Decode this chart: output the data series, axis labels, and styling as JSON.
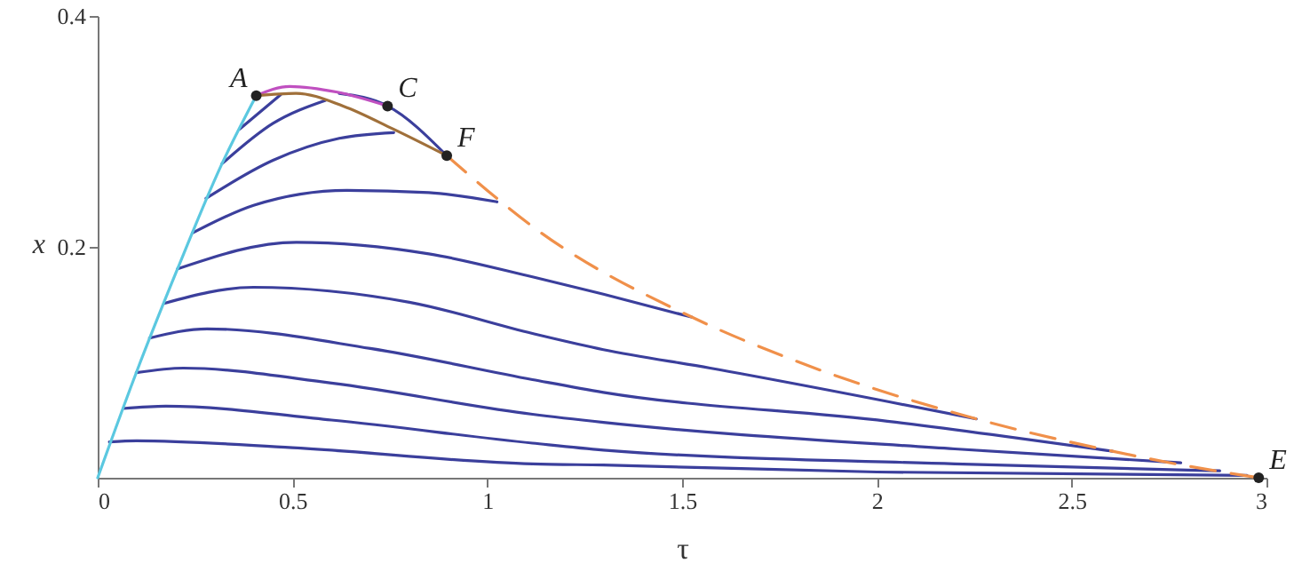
{
  "chart_data": {
    "type": "line",
    "xlabel": "τ",
    "ylabel": "x",
    "xlim": [
      0,
      3
    ],
    "ylim": [
      0,
      0.4
    ],
    "xticks": [
      0,
      0.5,
      1,
      1.5,
      2,
      2.5,
      3
    ],
    "yticks": [
      0.2,
      0.4
    ],
    "grid": false,
    "line_style": "solid",
    "series": [
      {
        "color": "#3b3f9c",
        "x": [
          0.03,
          0.1,
          0.5,
          1.116,
          1.298,
          2.0,
          2.95
        ],
        "values": [
          0.031,
          0.032,
          0.026,
          0.012,
          0.011,
          0.005,
          0.002
        ]
      },
      {
        "color": "#3b3f9c",
        "x": [
          0.065,
          0.175,
          0.6,
          1.116,
          1.298,
          2.2,
          2.88
        ],
        "values": [
          0.06,
          0.062,
          0.05,
          0.03,
          0.024,
          0.012,
          0.006
        ]
      },
      {
        "color": "#3b3f9c",
        "x": [
          0.099,
          0.22,
          0.6,
          1.116,
          1.298,
          2.2,
          2.78
        ],
        "values": [
          0.091,
          0.095,
          0.082,
          0.055,
          0.048,
          0.025,
          0.013
        ]
      },
      {
        "color": "#3b3f9c",
        "x": [
          0.133,
          0.281,
          0.7,
          1.116,
          1.298,
          2.027,
          2.605
        ],
        "values": [
          0.121,
          0.129,
          0.112,
          0.085,
          0.074,
          0.049,
          0.023
        ]
      },
      {
        "color": "#3b3f9c",
        "x": [
          0.17,
          0.4,
          0.8,
          1.116,
          1.298,
          1.572,
          2.255
        ],
        "values": [
          0.151,
          0.165,
          0.152,
          0.125,
          0.111,
          0.095,
          0.051
        ]
      },
      {
        "color": "#3b3f9c",
        "x": [
          0.205,
          0.51,
          0.85,
          1.116,
          1.298,
          1.526
        ],
        "values": [
          0.181,
          0.204,
          0.194,
          0.174,
          0.159,
          0.139
        ]
      },
      {
        "color": "#3b3f9c",
        "x": [
          0.243,
          0.4,
          0.64,
          0.85,
          1.025
        ],
        "values": [
          0.212,
          0.236,
          0.249,
          0.247,
          0.239
        ]
      },
      {
        "color": "#3b3f9c",
        "x": [
          0.278,
          0.45,
          0.62,
          0.76
        ],
        "values": [
          0.242,
          0.275,
          0.294,
          0.299
        ]
      },
      {
        "color": "#3b3f9c",
        "x": [
          0.319,
          0.45,
          0.585
        ],
        "values": [
          0.272,
          0.307,
          0.327
        ]
      },
      {
        "color": "#3b3f9c",
        "x": [
          0.364,
          0.47
        ],
        "values": [
          0.302,
          0.332
        ]
      },
      {
        "color": "#3b3f9c",
        "x": [
          0.62,
          0.744,
          0.896
        ],
        "values": [
          0.333,
          0.322,
          0.279
        ]
      },
      {
        "color": "#5bc8e0",
        "x": [
          0,
          0.099,
          0.205,
          0.319,
          0.407
        ],
        "values": [
          0,
          0.091,
          0.181,
          0.272,
          0.331
        ]
      },
      {
        "color": "#c050c0",
        "x": [
          0.407,
          0.493,
          0.615,
          0.744
        ],
        "values": [
          0.331,
          0.339,
          0.334,
          0.322
        ]
      },
      {
        "color": "#a0703a",
        "x": [
          0.407,
          0.509,
          0.63,
          0.759,
          0.896
        ],
        "values": [
          0.331,
          0.333,
          0.322,
          0.302,
          0.279
        ]
      },
      {
        "color": "#f0904a",
        "line_style": "dashed",
        "x": [
          0.896,
          1.139,
          1.526,
          1.77,
          2.255,
          2.605,
          2.8,
          2.98
        ],
        "values": [
          0.279,
          0.212,
          0.139,
          0.104,
          0.051,
          0.023,
          0.01,
          0
        ]
      },
      {
        "type": "scatter",
        "marker": "circle",
        "color": "#222222",
        "x": [
          0.407,
          0.744,
          0.896,
          2.98
        ],
        "values": [
          0.331,
          0.322,
          0.279,
          0
        ]
      }
    ],
    "annotations": [
      {
        "text": "A",
        "x": 0.407,
        "y": 0.331
      },
      {
        "text": "C",
        "x": 0.744,
        "y": 0.322
      },
      {
        "text": "F",
        "x": 0.896,
        "y": 0.279
      },
      {
        "text": "E",
        "x": 2.98,
        "y": 0
      }
    ]
  }
}
